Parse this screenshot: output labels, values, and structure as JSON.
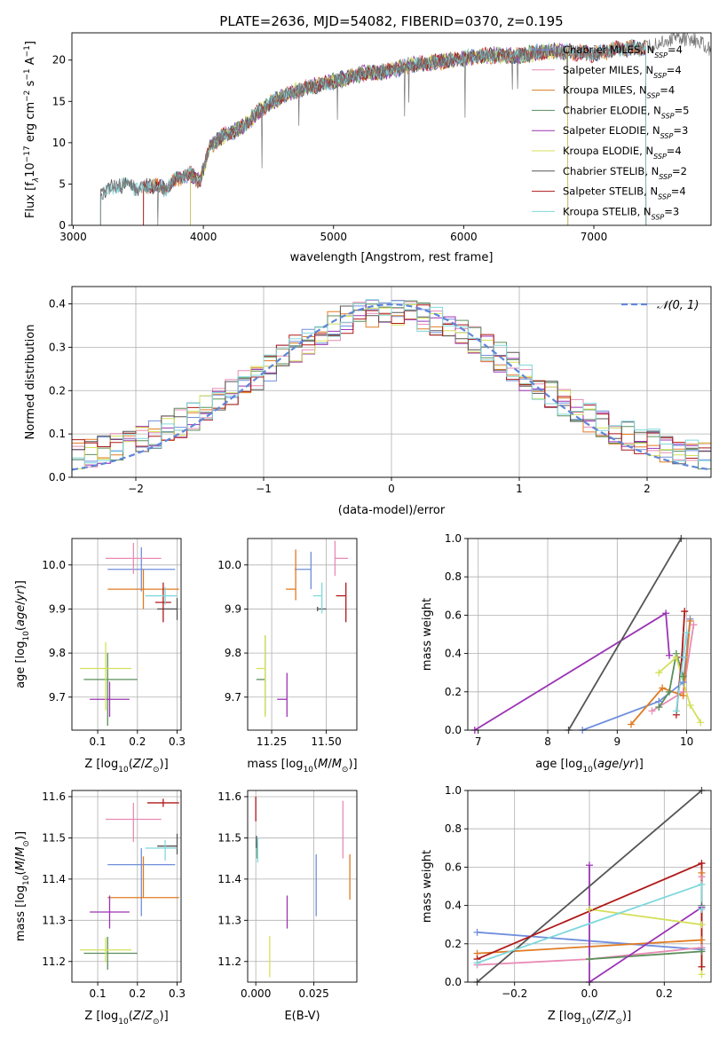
{
  "title": "PLATE=2636, MJD=54082, FIBERID=0370, z=0.195",
  "colors": {
    "Chabrier MILES": "#6f8fdc",
    "Salpeter MILES": "#e88bb4",
    "Kroupa MILES": "#e07b22",
    "Chabrier ELODIE": "#5a8f5a",
    "Salpeter ELODIE": "#9b34b4",
    "Kroupa ELODIE": "#d4e05a",
    "Chabrier STELIB": "#555555",
    "Salpeter STELIB": "#b01818",
    "Kroupa STELIB": "#7fd8dc"
  },
  "chart_data": [
    {
      "id": "spectrum",
      "type": "line",
      "xlabel": "wavelength [Angstrom, rest frame]",
      "ylabel_parts": [
        "Flux [f",
        "λ",
        "10",
        "−17",
        " erg cm",
        "−2",
        " s",
        "−1",
        " A",
        "−1",
        "]"
      ],
      "xlim": [
        2990,
        7900
      ],
      "ylim": [
        0,
        23.3
      ],
      "xticks": [
        3000,
        4000,
        5000,
        6000,
        7000
      ],
      "yticks": [
        0,
        5,
        10,
        15,
        20
      ],
      "grid": false,
      "legend_loc": "upper-right",
      "legend": [
        {
          "name": "Chabrier MILES",
          "nssp": "4"
        },
        {
          "name": "Salpeter MILES",
          "nssp": "4"
        },
        {
          "name": "Kroupa MILES",
          "nssp": "4"
        },
        {
          "name": "Chabrier ELODIE",
          "nssp": "5"
        },
        {
          "name": "Salpeter ELODIE",
          "nssp": "3"
        },
        {
          "name": "Kroupa ELODIE",
          "nssp": "4"
        },
        {
          "name": "Chabrier STELIB",
          "nssp": "2"
        },
        {
          "name": "Salpeter STELIB",
          "nssp": "4"
        },
        {
          "name": "Kroupa STELIB",
          "nssp": "3"
        }
      ],
      "nssp_label": "N",
      "nssp_sub": "SSP",
      "data_series": {
        "name": "data",
        "color": "#777777",
        "x_range": [
          3210,
          7900
        ],
        "x": [
          3210,
          3300,
          3400,
          3500,
          3600,
          3700,
          3800,
          3900,
          3970,
          4050,
          4150,
          4300,
          4450,
          4600,
          4800,
          5000,
          5200,
          5400,
          5600,
          5800,
          6000,
          6200,
          6400,
          6600,
          6800,
          7000,
          7200,
          7400,
          7600,
          7800,
          7900
        ],
        "y": [
          3.8,
          4.6,
          5.0,
          4.4,
          4.9,
          4.4,
          5.6,
          6.3,
          5.3,
          9.6,
          10.8,
          11.9,
          14.1,
          15.6,
          16.7,
          17.4,
          18.3,
          18.6,
          19.4,
          19.8,
          20.2,
          20.6,
          20.5,
          21.0,
          21.0,
          20.7,
          21.4,
          21.5,
          22.6,
          22.3,
          21.2
        ]
      },
      "model_ranges": {
        "Chabrier MILES": [
          3540,
          7400
        ],
        "Salpeter MILES": [
          3540,
          7400
        ],
        "Kroupa MILES": [
          3540,
          7400
        ],
        "Chabrier ELODIE": [
          3900,
          6800
        ],
        "Salpeter ELODIE": [
          3900,
          6800
        ],
        "Kroupa ELODIE": [
          3900,
          6800
        ],
        "Chabrier STELIB": [
          3210,
          7400
        ],
        "Salpeter STELIB": [
          3540,
          7400
        ],
        "Kroupa STELIB": [
          3210,
          7400
        ]
      }
    },
    {
      "id": "residuals",
      "type": "histogram",
      "xlabel": "(data-model)/error",
      "ylabel": "Normed distribution",
      "xlim": [
        -2.5,
        2.5
      ],
      "ylim": [
        0,
        0.44
      ],
      "xticks": [
        -2,
        -1,
        0,
        1,
        2
      ],
      "yticks": [
        0.0,
        0.1,
        0.2,
        0.3,
        0.4
      ],
      "grid": true,
      "legend_loc": "upper-right",
      "reference_curve": {
        "name": "𝒩(0, 1)",
        "mean": 0,
        "sigma": 1,
        "color": "#5f86d8"
      },
      "bin_width": 0.1
    },
    {
      "id": "age-vs-Z",
      "type": "errorbar",
      "xlabel": "Z [log10(Z/Z⊙)]",
      "ylabel": "age  [log10(age/yr)]",
      "xlim": [
        0.035,
        0.31
      ],
      "ylim": [
        9.625,
        10.06
      ],
      "xticks": [
        0.1,
        0.2,
        0.3
      ],
      "yticks": [
        9.7,
        9.8,
        9.9,
        10.0
      ],
      "grid": true,
      "points": [
        {
          "model": "Chabrier MILES",
          "x": 0.21,
          "y": 9.99,
          "xerr": [
            0.085,
            0.085
          ],
          "yerr": [
            0.05,
            0.05
          ]
        },
        {
          "model": "Salpeter MILES",
          "x": 0.19,
          "y": 10.015,
          "xerr": [
            0.07,
            0.07
          ],
          "yerr": [
            0.035,
            0.035
          ]
        },
        {
          "model": "Kroupa MILES",
          "x": 0.215,
          "y": 9.945,
          "xerr": [
            0.09,
            0.09
          ],
          "yerr": [
            0.045,
            0.045
          ]
        },
        {
          "model": "Chabrier ELODIE",
          "x": 0.125,
          "y": 9.74,
          "xerr": [
            0.06,
            0.075
          ],
          "yerr": [
            0.105,
            0.06
          ]
        },
        {
          "model": "Salpeter ELODIE",
          "x": 0.13,
          "y": 9.695,
          "xerr": [
            0.05,
            0.05
          ],
          "yerr": [
            0.04,
            0.04
          ]
        },
        {
          "model": "Kroupa ELODIE",
          "x": 0.12,
          "y": 9.765,
          "xerr": [
            0.065,
            0.065
          ],
          "yerr": [
            0.095,
            0.06
          ]
        },
        {
          "model": "Chabrier STELIB",
          "x": 0.3,
          "y": 9.9,
          "xerr": [
            0.05,
            0.0
          ],
          "yerr": [
            0.025,
            0.025
          ]
        },
        {
          "model": "Salpeter STELIB",
          "x": 0.265,
          "y": 9.915,
          "xerr": [
            0.02,
            0.02
          ],
          "yerr": [
            0.045,
            0.045
          ]
        },
        {
          "model": "Kroupa STELIB",
          "x": 0.27,
          "y": 9.93,
          "xerr": [
            0.05,
            0.03
          ],
          "yerr": [
            0.02,
            0.02
          ]
        }
      ]
    },
    {
      "id": "age-vs-mass",
      "type": "errorbar",
      "xlabel": "mass [log10(M/M⊙)]",
      "ylabel": "",
      "xlim": [
        11.14,
        11.64
      ],
      "ylim": [
        9.625,
        10.06
      ],
      "xticks": [
        11.25,
        11.5
      ],
      "yticks": [
        9.7,
        9.8,
        9.9,
        10.0
      ],
      "grid": true,
      "points": [
        {
          "model": "Chabrier MILES",
          "x": 11.43,
          "y": 9.99,
          "xerr": [
            0.075,
            0.0
          ],
          "yerr": [
            0.045,
            0.04
          ]
        },
        {
          "model": "Salpeter MILES",
          "x": 11.54,
          "y": 10.015,
          "xerr": [
            0.0,
            0.06
          ],
          "yerr": [
            0.04,
            0.04
          ]
        },
        {
          "model": "Kroupa MILES",
          "x": 11.36,
          "y": 9.945,
          "xerr": [
            0.045,
            0.0
          ],
          "yerr": [
            0.025,
            0.09
          ]
        },
        {
          "model": "Chabrier ELODIE",
          "x": 11.22,
          "y": 9.74,
          "xerr": [
            0.04,
            0.0
          ],
          "yerr": [
            0.08,
            0.1
          ]
        },
        {
          "model": "Salpeter ELODIE",
          "x": 11.32,
          "y": 9.695,
          "xerr": [
            0.045,
            0.0
          ],
          "yerr": [
            0.04,
            0.06
          ]
        },
        {
          "model": "Kroupa ELODIE",
          "x": 11.22,
          "y": 9.765,
          "xerr": [
            0.04,
            0.0
          ],
          "yerr": [
            0.11,
            0.075
          ]
        },
        {
          "model": "Chabrier STELIB",
          "x": 11.46,
          "y": 9.9,
          "xerr": [
            0.0,
            0.04
          ],
          "yerr": [
            0.005,
            0.005
          ]
        },
        {
          "model": "Salpeter STELIB",
          "x": 11.59,
          "y": 9.93,
          "xerr": [
            0.045,
            0.0
          ],
          "yerr": [
            0.06,
            0.03
          ]
        },
        {
          "model": "Kroupa STELIB",
          "x": 11.48,
          "y": 9.93,
          "xerr": [
            0.04,
            0.0
          ],
          "yerr": [
            0.04,
            0.03
          ]
        }
      ]
    },
    {
      "id": "mass-weight-vs-age",
      "type": "line",
      "xlabel": "age  [log10(age/yr)]",
      "ylabel": "mass weight",
      "xlim": [
        6.85,
        10.35
      ],
      "ylim": [
        0,
        1.0
      ],
      "xticks": [
        7,
        8,
        9,
        10
      ],
      "yticks": [
        0.0,
        0.2,
        0.4,
        0.6,
        0.8,
        1.0
      ],
      "grid": true,
      "series": [
        {
          "model": "Chabrier MILES",
          "x": [
            8.5,
            9.6,
            9.95,
            10.05
          ],
          "y": [
            0.0,
            0.15,
            0.25,
            0.58
          ]
        },
        {
          "model": "Salpeter MILES",
          "x": [
            9.5,
            9.95,
            10.1
          ],
          "y": [
            0.1,
            0.2,
            0.55
          ]
        },
        {
          "model": "Kroupa MILES",
          "x": [
            9.2,
            9.65,
            9.95,
            10.05
          ],
          "y": [
            0.03,
            0.22,
            0.18,
            0.57
          ]
        },
        {
          "model": "Chabrier ELODIE",
          "x": [
            9.6,
            9.75,
            9.85,
            9.95
          ],
          "y": [
            0.12,
            0.2,
            0.4,
            0.28
          ]
        },
        {
          "model": "Salpeter ELODIE",
          "x": [
            6.95,
            9.7,
            9.75
          ],
          "y": [
            0.0,
            0.61,
            0.39
          ]
        },
        {
          "model": "Kroupa ELODIE",
          "x": [
            9.6,
            9.85,
            10.05,
            10.2
          ],
          "y": [
            0.3,
            0.38,
            0.13,
            0.04
          ]
        },
        {
          "model": "Chabrier STELIB",
          "x": [
            8.3,
            9.92
          ],
          "y": [
            0.0,
            1.0
          ]
        },
        {
          "model": "Salpeter STELIB",
          "x": [
            9.85,
            9.93,
            9.97
          ],
          "y": [
            0.08,
            0.38,
            0.62
          ]
        },
        {
          "model": "Kroupa STELIB",
          "x": [
            9.85,
            9.95,
            10.0
          ],
          "y": [
            0.1,
            0.38,
            0.51
          ]
        }
      ]
    },
    {
      "id": "mass-vs-Z",
      "type": "errorbar",
      "xlabel": "Z [log10(Z/Z⊙)]",
      "ylabel": "mass [log10(M/M⊙)]",
      "xlim": [
        0.035,
        0.31
      ],
      "ylim": [
        11.15,
        11.615
      ],
      "xticks": [
        0.1,
        0.2,
        0.3
      ],
      "yticks": [
        11.2,
        11.3,
        11.4,
        11.5,
        11.6
      ],
      "grid": true,
      "points": [
        {
          "model": "Chabrier MILES",
          "x": 0.21,
          "y": 11.435,
          "xerr": [
            0.085,
            0.085
          ],
          "yerr": [
            0.125,
            0.04
          ]
        },
        {
          "model": "Salpeter MILES",
          "x": 0.19,
          "y": 11.545,
          "xerr": [
            0.07,
            0.07
          ],
          "yerr": [
            0.055,
            0.04
          ]
        },
        {
          "model": "Kroupa MILES",
          "x": 0.215,
          "y": 11.355,
          "xerr": [
            0.09,
            0.09
          ],
          "yerr": [
            0.0,
            0.1
          ]
        },
        {
          "model": "Chabrier ELODIE",
          "x": 0.125,
          "y": 11.22,
          "xerr": [
            0.06,
            0.075
          ],
          "yerr": [
            0.04,
            0.04
          ]
        },
        {
          "model": "Salpeter ELODIE",
          "x": 0.13,
          "y": 11.32,
          "xerr": [
            0.05,
            0.05
          ],
          "yerr": [
            0.04,
            0.04
          ]
        },
        {
          "model": "Kroupa ELODIE",
          "x": 0.12,
          "y": 11.228,
          "xerr": [
            0.065,
            0.065
          ],
          "yerr": [
            0.03,
            0.03
          ]
        },
        {
          "model": "Chabrier STELIB",
          "x": 0.3,
          "y": 11.48,
          "xerr": [
            0.05,
            0.0
          ],
          "yerr": [
            0.02,
            0.03
          ]
        },
        {
          "model": "Salpeter STELIB",
          "x": 0.265,
          "y": 11.585,
          "xerr": [
            0.04,
            0.04
          ],
          "yerr": [
            0.01,
            0.01
          ]
        },
        {
          "model": "Kroupa STELIB",
          "x": 0.27,
          "y": 11.475,
          "xerr": [
            0.05,
            0.03
          ],
          "yerr": [
            0.03,
            0.02
          ]
        }
      ]
    },
    {
      "id": "mass-vs-EBV",
      "type": "errorbar",
      "xlabel": "E(B-V)",
      "ylabel": "",
      "xlim": [
        -0.0035,
        0.0435
      ],
      "ylim": [
        11.15,
        11.615
      ],
      "xticks": [
        0.0,
        0.025
      ],
      "yticks": [
        11.2,
        11.3,
        11.4,
        11.5,
        11.6
      ],
      "grid": true,
      "points": [
        {
          "model": "Chabrier MILES",
          "x": 0.026,
          "y": 11.38,
          "xerr": [
            0,
            0
          ],
          "yerr": [
            0.07,
            0.08
          ]
        },
        {
          "model": "Salpeter MILES",
          "x": 0.0375,
          "y": 11.49,
          "xerr": [
            0,
            0
          ],
          "yerr": [
            0.04,
            0.1
          ]
        },
        {
          "model": "Kroupa MILES",
          "x": 0.0405,
          "y": 11.405,
          "xerr": [
            0,
            0
          ],
          "yerr": [
            0.055,
            0.055
          ]
        },
        {
          "model": "Chabrier ELODIE",
          "x": 0.0005,
          "y": 11.47,
          "xerr": [
            0,
            0
          ],
          "yerr": [
            0.02,
            0.02
          ]
        },
        {
          "model": "Salpeter ELODIE",
          "x": 0.0135,
          "y": 11.32,
          "xerr": [
            0,
            0
          ],
          "yerr": [
            0.04,
            0.04
          ]
        },
        {
          "model": "Kroupa ELODIE",
          "x": 0.006,
          "y": 11.212,
          "xerr": [
            0,
            0
          ],
          "yerr": [
            0.05,
            0.05
          ]
        },
        {
          "model": "Chabrier STELIB",
          "x": 0.0003,
          "y": 11.49,
          "xerr": [
            0,
            0
          ],
          "yerr": [
            0.015,
            0.015
          ]
        },
        {
          "model": "Salpeter STELIB",
          "x": 0.0,
          "y": 11.57,
          "xerr": [
            0,
            0
          ],
          "yerr": [
            0.03,
            0.03
          ]
        },
        {
          "model": "Kroupa STELIB",
          "x": 0.0008,
          "y": 11.47,
          "xerr": [
            0,
            0
          ],
          "yerr": [
            0.03,
            0.03
          ]
        }
      ]
    },
    {
      "id": "mass-weight-vs-Z",
      "type": "line",
      "xlabel": "Z [log10(Z/Z⊙)]",
      "ylabel": "mass weight",
      "xlim": [
        -0.325,
        0.325
      ],
      "ylim": [
        0,
        1.0
      ],
      "xticks": [
        -0.2,
        0.0,
        0.2
      ],
      "yticks": [
        0.0,
        0.2,
        0.4,
        0.6,
        0.8,
        1.0
      ],
      "grid": true,
      "series": [
        {
          "model": "Chabrier MILES",
          "x": [
            -0.3,
            0.3,
            0.3
          ],
          "y": [
            0.26,
            0.17,
            0.18
          ]
        },
        {
          "model": "Salpeter MILES",
          "x": [
            -0.3,
            0.0,
            0.3,
            0.3
          ],
          "y": [
            0.09,
            0.12,
            0.18,
            0.55
          ]
        },
        {
          "model": "Kroupa MILES",
          "x": [
            -0.3,
            0.3,
            0.3
          ],
          "y": [
            0.15,
            0.22,
            0.57
          ]
        },
        {
          "model": "Chabrier ELODIE",
          "x": [
            0.0,
            0.3,
            0.3
          ],
          "y": [
            0.12,
            0.16,
            0.4
          ]
        },
        {
          "model": "Salpeter ELODIE",
          "x": [
            0.0,
            0.0,
            0.3
          ],
          "y": [
            0.61,
            0.0,
            0.39
          ]
        },
        {
          "model": "Kroupa ELODIE",
          "x": [
            0.0,
            0.3,
            0.3
          ],
          "y": [
            0.38,
            0.3,
            0.04
          ]
        },
        {
          "model": "Chabrier STELIB",
          "x": [
            -0.3,
            0.3
          ],
          "y": [
            0.0,
            1.0
          ]
        },
        {
          "model": "Salpeter STELIB",
          "x": [
            -0.3,
            0.3,
            0.3
          ],
          "y": [
            0.12,
            0.62,
            0.08
          ]
        },
        {
          "model": "Kroupa STELIB",
          "x": [
            -0.3,
            0.3,
            0.3
          ],
          "y": [
            0.1,
            0.51,
            0.38
          ]
        }
      ]
    }
  ]
}
